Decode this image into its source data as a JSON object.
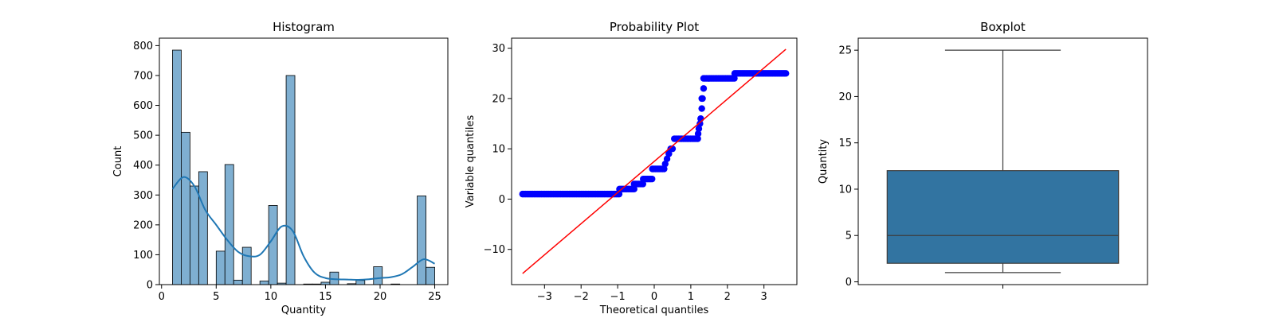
{
  "chart_data": [
    {
      "type": "bar",
      "title": "Histogram",
      "xlabel": "Quantity",
      "ylabel": "Count",
      "xlim": [
        -0.2,
        26.2
      ],
      "ylim": [
        0,
        825
      ],
      "xticks": [
        0,
        5,
        10,
        15,
        20,
        25
      ],
      "yticks": [
        0,
        100,
        200,
        300,
        400,
        500,
        600,
        700,
        800
      ],
      "bins": [
        {
          "x0": 1.0,
          "x1": 1.8,
          "count": 785
        },
        {
          "x0": 1.8,
          "x1": 2.6,
          "count": 510
        },
        {
          "x0": 2.6,
          "x1": 3.4,
          "count": 330
        },
        {
          "x0": 3.4,
          "x1": 4.2,
          "count": 378
        },
        {
          "x0": 4.2,
          "x1": 5.0,
          "count": 0
        },
        {
          "x0": 5.0,
          "x1": 5.8,
          "count": 112
        },
        {
          "x0": 5.8,
          "x1": 6.6,
          "count": 402
        },
        {
          "x0": 6.6,
          "x1": 7.4,
          "count": 15
        },
        {
          "x0": 7.4,
          "x1": 8.2,
          "count": 125
        },
        {
          "x0": 8.2,
          "x1": 9.0,
          "count": 0
        },
        {
          "x0": 9.0,
          "x1": 9.8,
          "count": 12
        },
        {
          "x0": 9.8,
          "x1": 10.6,
          "count": 265
        },
        {
          "x0": 10.6,
          "x1": 11.4,
          "count": 5
        },
        {
          "x0": 11.4,
          "x1": 12.2,
          "count": 700
        },
        {
          "x0": 12.2,
          "x1": 13.0,
          "count": 0
        },
        {
          "x0": 13.0,
          "x1": 13.8,
          "count": 2
        },
        {
          "x0": 13.8,
          "x1": 14.6,
          "count": 2
        },
        {
          "x0": 14.6,
          "x1": 15.4,
          "count": 8
        },
        {
          "x0": 15.4,
          "x1": 16.2,
          "count": 42
        },
        {
          "x0": 16.2,
          "x1": 17.0,
          "count": 0
        },
        {
          "x0": 17.0,
          "x1": 17.8,
          "count": 3
        },
        {
          "x0": 17.8,
          "x1": 18.6,
          "count": 14
        },
        {
          "x0": 18.6,
          "x1": 19.4,
          "count": 0
        },
        {
          "x0": 19.4,
          "x1": 20.2,
          "count": 60
        },
        {
          "x0": 20.2,
          "x1": 21.0,
          "count": 0
        },
        {
          "x0": 21.0,
          "x1": 21.8,
          "count": 2
        },
        {
          "x0": 21.8,
          "x1": 22.6,
          "count": 0
        },
        {
          "x0": 22.6,
          "x1": 23.4,
          "count": 0
        },
        {
          "x0": 23.4,
          "x1": 24.2,
          "count": 297
        },
        {
          "x0": 24.2,
          "x1": 25.0,
          "count": 58
        }
      ],
      "kde": {
        "x": [
          1,
          2,
          3,
          4,
          5,
          6,
          7,
          8,
          9,
          10,
          11,
          12,
          13,
          14,
          15,
          16,
          17,
          18,
          19,
          20,
          21,
          22,
          23,
          24,
          25
        ],
        "y": [
          320,
          360,
          330,
          250,
          200,
          150,
          110,
          95,
          100,
          145,
          195,
          180,
          95,
          40,
          22,
          18,
          17,
          16,
          18,
          22,
          25,
          35,
          60,
          85,
          70
        ]
      },
      "colors": {
        "bar": "#7fafd1",
        "kde": "#1f77b4"
      }
    },
    {
      "type": "scatter",
      "title": "Probability Plot",
      "xlabel": "Theoretical quantiles",
      "ylabel": "Variable quantiles",
      "xlim": [
        -3.9,
        3.9
      ],
      "ylim": [
        -17,
        32
      ],
      "xticks": [
        -3,
        -2,
        -1,
        0,
        1,
        2,
        3
      ],
      "yticks": [
        -10,
        0,
        10,
        20,
        30
      ],
      "segments": [
        {
          "x0": -3.6,
          "x1": -0.95,
          "y": 1
        },
        {
          "x0": -0.95,
          "x1": -0.55,
          "y": 2
        },
        {
          "x0": -0.55,
          "x1": -0.3,
          "y": 3
        },
        {
          "x0": -0.3,
          "x1": -0.05,
          "y": 4
        },
        {
          "x0": -0.05,
          "x1": 0.3,
          "y": 6
        },
        {
          "x0": 0.55,
          "x1": 1.2,
          "y": 12
        },
        {
          "x0": 1.35,
          "x1": 2.2,
          "y": 24
        },
        {
          "x0": 2.2,
          "x1": 3.6,
          "y": 25
        }
      ],
      "points": [
        [
          0.3,
          7
        ],
        [
          0.35,
          8
        ],
        [
          0.4,
          9
        ],
        [
          0.45,
          10
        ],
        [
          0.5,
          10
        ],
        [
          1.2,
          13
        ],
        [
          1.22,
          14
        ],
        [
          1.25,
          15
        ],
        [
          1.27,
          16
        ],
        [
          1.3,
          18
        ],
        [
          1.32,
          20
        ],
        [
          1.35,
          22
        ],
        [
          1.3,
          20
        ]
      ],
      "fit_line": {
        "x": [
          -3.6,
          3.6
        ],
        "y": [
          -14.8,
          29.8
        ]
      },
      "colors": {
        "points": "#0000ff",
        "line": "#ff0000"
      }
    },
    {
      "type": "box",
      "title": "Boxplot",
      "xlabel": "",
      "ylabel": "Quantity",
      "ylim": [
        -0.3,
        26.3
      ],
      "yticks": [
        0,
        5,
        10,
        15,
        20,
        25
      ],
      "stats": {
        "min": 1,
        "q1": 2,
        "median": 5,
        "q3": 12,
        "max": 25
      },
      "colors": {
        "box": "#3274a1",
        "line": "#3d3d3d"
      }
    }
  ]
}
